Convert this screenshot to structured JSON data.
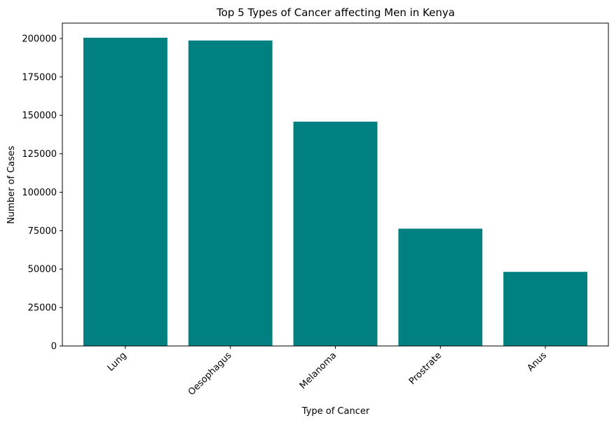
{
  "chart_data": {
    "type": "bar",
    "title": "Top 5 Types of Cancer affecting Men in Kenya",
    "xlabel": "Type of Cancer",
    "ylabel": "Number of Cases",
    "categories": [
      "Lung",
      "Oesophagus",
      "Melanoma",
      "Prostrate",
      "Anus"
    ],
    "values": [
      200500,
      198700,
      145900,
      76300,
      48200
    ],
    "ylim": [
      0,
      210000
    ],
    "yticks": [
      0,
      25000,
      50000,
      75000,
      100000,
      125000,
      150000,
      175000,
      200000
    ],
    "ytick_labels": [
      "0",
      "25000",
      "50000",
      "75000",
      "100000",
      "125000",
      "150000",
      "175000",
      "200000"
    ],
    "bar_color": "#008080",
    "grid": false,
    "legend": "none"
  }
}
